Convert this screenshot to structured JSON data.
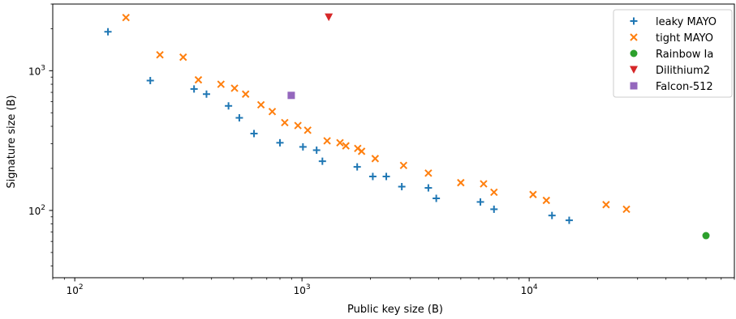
{
  "chart_data": {
    "type": "scatter",
    "title": "",
    "xlabel": "Public key size (B)",
    "ylabel": "Signature size (B)",
    "xscale": "log",
    "yscale": "log",
    "xlim": [
      80,
      80000
    ],
    "ylim": [
      33,
      3000
    ],
    "grid": false,
    "legend_position": "top-right",
    "xticks": [
      {
        "value": 100,
        "base": "10",
        "exp": "2"
      },
      {
        "value": 1000,
        "base": "10",
        "exp": "3"
      },
      {
        "value": 10000,
        "base": "10",
        "exp": "4"
      }
    ],
    "yticks": [
      {
        "value": 100,
        "base": "10",
        "exp": "2"
      },
      {
        "value": 1000,
        "base": "10",
        "exp": "3"
      }
    ],
    "series": [
      {
        "name": "leaky MAYO",
        "marker": "plus",
        "color": "#1f77b4",
        "points": [
          [
            140,
            1900
          ],
          [
            215,
            850
          ],
          [
            335,
            740
          ],
          [
            380,
            680
          ],
          [
            475,
            560
          ],
          [
            530,
            460
          ],
          [
            615,
            355
          ],
          [
            800,
            305
          ],
          [
            1010,
            285
          ],
          [
            1160,
            270
          ],
          [
            1230,
            225
          ],
          [
            1750,
            205
          ],
          [
            2050,
            175
          ],
          [
            2350,
            175
          ],
          [
            2750,
            148
          ],
          [
            3600,
            145
          ],
          [
            3900,
            122
          ],
          [
            6100,
            115
          ],
          [
            7000,
            102
          ],
          [
            12600,
            92
          ],
          [
            15000,
            85
          ]
        ]
      },
      {
        "name": "tight MAYO",
        "marker": "x",
        "color": "#ff7f0e",
        "points": [
          [
            168,
            2400
          ],
          [
            237,
            1300
          ],
          [
            300,
            1250
          ],
          [
            350,
            860
          ],
          [
            440,
            800
          ],
          [
            505,
            750
          ],
          [
            565,
            680
          ],
          [
            660,
            570
          ],
          [
            740,
            510
          ],
          [
            840,
            425
          ],
          [
            960,
            405
          ],
          [
            1060,
            375
          ],
          [
            1290,
            315
          ],
          [
            1470,
            305
          ],
          [
            1560,
            290
          ],
          [
            1760,
            278
          ],
          [
            1830,
            265
          ],
          [
            2100,
            235
          ],
          [
            2800,
            210
          ],
          [
            3600,
            185
          ],
          [
            5000,
            158
          ],
          [
            6300,
            155
          ],
          [
            7000,
            135
          ],
          [
            10400,
            130
          ],
          [
            11900,
            118
          ],
          [
            21800,
            110
          ],
          [
            26800,
            102
          ]
        ]
      },
      {
        "name": "Rainbow Ia",
        "marker": "circle",
        "color": "#2ca02c",
        "points": [
          [
            60000,
            66
          ]
        ]
      },
      {
        "name": "Dilithium2",
        "marker": "triangle-down",
        "color": "#d62728",
        "points": [
          [
            1312,
            2420
          ]
        ]
      },
      {
        "name": "Falcon-512",
        "marker": "square",
        "color": "#9467bd",
        "points": [
          [
            897,
            666
          ]
        ]
      }
    ]
  }
}
